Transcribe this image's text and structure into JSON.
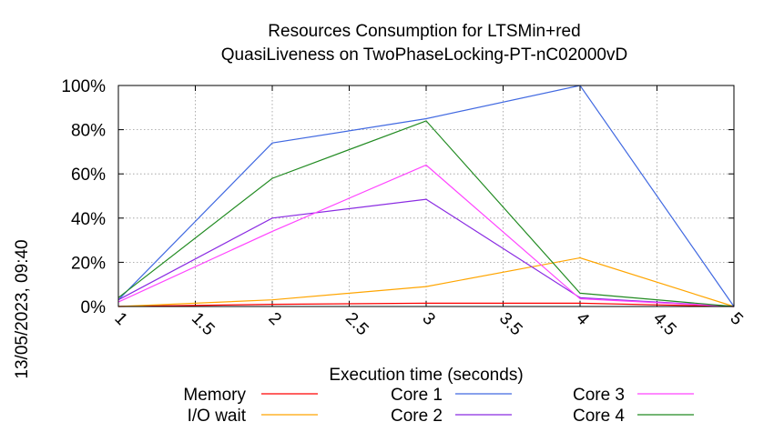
{
  "chart_data": {
    "type": "line",
    "title_lines": [
      "Resources Consumption for LTSMin+red",
      "QuasiLiveness on TwoPhaseLocking-PT-nC02000vD"
    ],
    "xlabel": "Execution time (seconds)",
    "ylabel": "",
    "side_label": "13/05/2023, 09:40",
    "xlim": [
      1,
      5
    ],
    "ylim": [
      0,
      100
    ],
    "x_ticks": [
      "1",
      "1.5",
      "2",
      "2.5",
      "3",
      "3.5",
      "4",
      "4.5",
      "5"
    ],
    "y_ticks": [
      "0%",
      "20%",
      "40%",
      "60%",
      "80%",
      "100%"
    ],
    "grid": true,
    "legend_position": "bottom",
    "x": [
      1,
      2,
      3,
      4,
      5
    ],
    "series": [
      {
        "name": "Memory",
        "color": "#ff0000",
        "values": [
          0,
          1,
          1.5,
          1.5,
          0
        ]
      },
      {
        "name": "I/O wait",
        "color": "#ffa500",
        "values": [
          0,
          3,
          9,
          22,
          0
        ]
      },
      {
        "name": "Core 1",
        "color": "#4169e1",
        "values": [
          3,
          74,
          85,
          100,
          0
        ]
      },
      {
        "name": "Core 2",
        "color": "#8a2be2",
        "values": [
          3,
          40,
          48.5,
          4,
          0
        ]
      },
      {
        "name": "Core 3",
        "color": "#ff44ff",
        "values": [
          2,
          34,
          64,
          3.5,
          0
        ]
      },
      {
        "name": "Core 4",
        "color": "#228b22",
        "values": [
          4,
          58,
          84,
          6,
          0
        ]
      }
    ]
  }
}
